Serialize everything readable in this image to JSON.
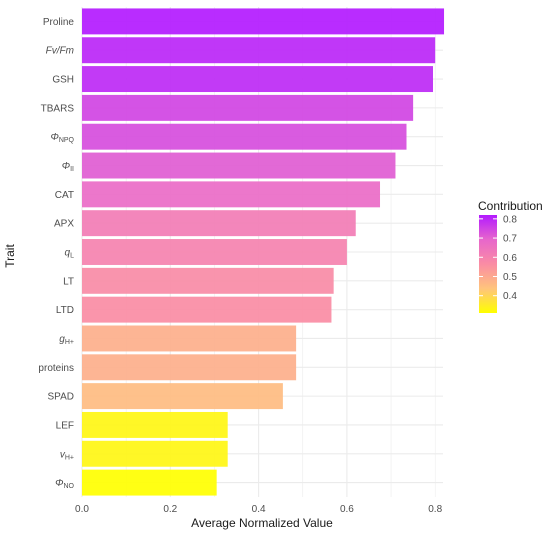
{
  "chart_data": {
    "type": "bar",
    "orientation": "horizontal",
    "xlabel": "Average Normalized Value",
    "ylabel": "Trait",
    "xlim": [
      0,
      0.85
    ],
    "x_ticks": [
      "0.0",
      "0.2",
      "0.4",
      "0.6",
      "0.8"
    ],
    "grid": true,
    "legend": {
      "title": "Contribution",
      "placement": "right",
      "ticks": [
        "0.4",
        "0.5",
        "0.6",
        "0.7",
        "0.8"
      ],
      "range": [
        0.31,
        0.82
      ],
      "colors": [
        "#FFFF00",
        "#FFC47C",
        "#FA8CA4",
        "#E766CC",
        "#B31AFF"
      ]
    },
    "categories": [
      {
        "label": "ΦNO",
        "main": "Φ",
        "sub": "NO",
        "value": 0.305
      },
      {
        "label": "vH+",
        "main": "v",
        "sub": "H+",
        "value": 0.33
      },
      {
        "label": "LEF",
        "main": "LEF",
        "sub": "",
        "value": 0.33
      },
      {
        "label": "SPAD",
        "main": "SPAD",
        "sub": "",
        "value": 0.455
      },
      {
        "label": "proteins",
        "main": "proteins",
        "sub": "",
        "value": 0.485
      },
      {
        "label": "gH+",
        "main": "g",
        "sub": "H+",
        "value": 0.485
      },
      {
        "label": "LTD",
        "main": "LTD",
        "sub": "",
        "value": 0.565
      },
      {
        "label": "LT",
        "main": "LT",
        "sub": "",
        "value": 0.57
      },
      {
        "label": "qL",
        "main": "q",
        "sub": "L",
        "value": 0.6
      },
      {
        "label": "APX",
        "main": "APX",
        "sub": "",
        "value": 0.62
      },
      {
        "label": "CAT",
        "main": "CAT",
        "sub": "",
        "value": 0.675
      },
      {
        "label": "ΦII",
        "main": "Φ",
        "sub": "II",
        "value": 0.71
      },
      {
        "label": "ΦNPQ",
        "main": "Φ",
        "sub": "NPQ",
        "value": 0.735
      },
      {
        "label": "TBARS",
        "main": "TBARS",
        "sub": "",
        "value": 0.75
      },
      {
        "label": "GSH",
        "main": "GSH",
        "sub": "",
        "value": 0.795
      },
      {
        "label": "Fv/Fm",
        "main": "Fv/Fm",
        "sub": "",
        "value": 0.8
      },
      {
        "label": "Proline",
        "main": "Proline",
        "sub": "",
        "value": 0.82
      }
    ]
  }
}
